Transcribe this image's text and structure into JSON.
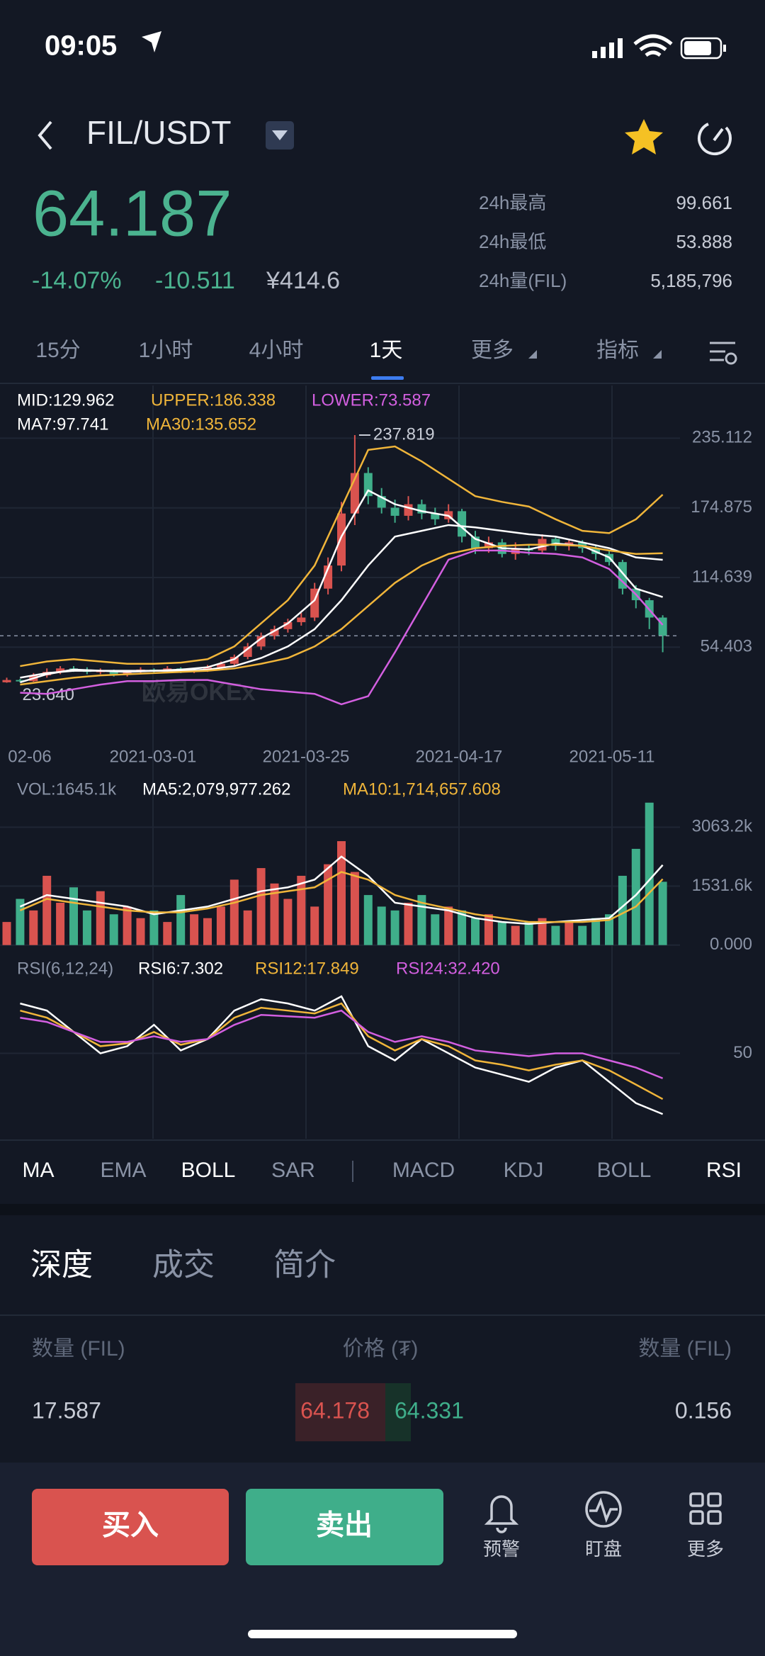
{
  "status": {
    "time": "09:05"
  },
  "header": {
    "pair": "FIL/USDT"
  },
  "ticker": {
    "price": "64.187",
    "change_pct": "-14.07%",
    "change": "-10.511",
    "cny": "¥414.6",
    "stats": [
      {
        "label": "24h最高",
        "value": "99.661"
      },
      {
        "label": "24h最低",
        "value": "53.888"
      },
      {
        "label": "24h量(FIL)",
        "value": "5,185,796"
      }
    ]
  },
  "intervals": [
    "15分",
    "1小时",
    "4小时",
    "1天",
    "更多",
    "指标"
  ],
  "chart_data": [
    {
      "type": "candlestick",
      "legend": [
        {
          "label": "MID:129.962",
          "color": "#ffffff"
        },
        {
          "label": "UPPER:186.338",
          "color": "#f0b53a"
        },
        {
          "label": "LOWER:73.587",
          "color": "#d35fe0"
        },
        {
          "label": "MA7:97.741",
          "color": "#ffffff"
        },
        {
          "label": "MA30:135.652",
          "color": "#f0b53a"
        }
      ],
      "up_color": "#d9534f",
      "down_color": "#3fae8a",
      "candles": {
        "open": [
          24,
          26,
          25,
          30,
          33,
          36,
          35,
          33,
          34,
          31,
          33,
          35,
          34,
          36,
          34,
          35,
          37,
          40,
          46,
          55,
          64,
          70,
          76,
          80,
          105,
          125,
          170,
          205,
          185,
          175,
          168,
          178,
          170,
          165,
          172,
          150,
          140,
          145,
          135,
          140,
          138,
          148,
          142,
          145,
          140,
          135,
          128,
          105,
          95,
          80
        ],
        "high": [
          28,
          27,
          32,
          36,
          38,
          38,
          37,
          36,
          35,
          34,
          37,
          36,
          38,
          37,
          36,
          39,
          42,
          48,
          58,
          67,
          73,
          79,
          84,
          110,
          132,
          180,
          237.819,
          210,
          192,
          182,
          185,
          182,
          175,
          178,
          174,
          155,
          150,
          148,
          145,
          143,
          152,
          150,
          148,
          147,
          143,
          138,
          130,
          108,
          97,
          82
        ],
        "low": [
          23.64,
          24,
          24.5,
          28,
          31,
          33,
          31,
          31,
          29,
          29,
          31,
          32,
          32,
          32,
          32,
          33,
          35,
          38,
          44,
          52,
          61,
          67,
          73,
          77,
          100,
          120,
          160,
          178,
          170,
          162,
          164,
          165,
          160,
          162,
          145,
          135,
          136,
          132,
          130,
          134,
          135,
          138,
          138,
          136,
          130,
          125,
          100,
          88,
          70,
          50
        ],
        "close": [
          26,
          25,
          30,
          33,
          36,
          35,
          33,
          34,
          31,
          33,
          35,
          34,
          36,
          34,
          35,
          37,
          40,
          46,
          55,
          64,
          70,
          76,
          80,
          105,
          125,
          170,
          205,
          185,
          175,
          168,
          178,
          170,
          165,
          172,
          150,
          140,
          145,
          135,
          140,
          138,
          148,
          142,
          145,
          140,
          135,
          128,
          105,
          95,
          80,
          64.187
        ]
      },
      "series": [
        {
          "name": "UPPER",
          "color": "#f0b53a",
          "values": [
            38,
            42,
            44,
            42,
            40,
            40,
            41,
            44,
            55,
            75,
            95,
            125,
            175,
            225,
            228,
            215,
            200,
            185,
            180,
            176,
            165,
            155,
            153,
            165,
            186.338
          ]
        },
        {
          "name": "MID",
          "color": "#ffffff",
          "values": [
            28,
            32,
            34,
            34,
            34,
            34,
            34,
            35,
            38,
            45,
            55,
            70,
            95,
            125,
            150,
            155,
            160,
            158,
            155,
            152,
            150,
            145,
            140,
            132,
            129.962
          ]
        },
        {
          "name": "LOWER",
          "color": "#d35fe0",
          "values": [
            15,
            14,
            18,
            22,
            25,
            25,
            26,
            26,
            22,
            18,
            16,
            14,
            5,
            12,
            50,
            90,
            130,
            138,
            138,
            136,
            135,
            132,
            122,
            100,
            73.587
          ]
        },
        {
          "name": "MA7",
          "color": "#ffffff",
          "values": [
            24,
            31,
            35,
            34,
            33,
            34,
            35,
            37,
            44,
            62,
            75,
            95,
            150,
            190,
            178,
            172,
            168,
            148,
            140,
            139,
            144,
            142,
            132,
            105,
            97.741
          ]
        },
        {
          "name": "MA30",
          "color": "#f0b53a",
          "values": [
            22,
            25,
            28,
            30,
            31,
            32,
            33,
            34,
            36,
            40,
            45,
            55,
            70,
            90,
            110,
            125,
            135,
            140,
            142,
            143,
            143,
            142,
            138,
            135,
            135.652
          ]
        }
      ],
      "ylim": [
        -15.9,
        280.7
      ],
      "yticks": [
        235.112,
        174.875,
        114.639,
        54.403
      ],
      "x_labels": [
        "02-06",
        "2021-03-01",
        "2021-03-25",
        "2021-04-17",
        "2021-05-11"
      ],
      "max_label": "237.819",
      "min_label": "23.640",
      "watermark": "欧易OKEx"
    },
    {
      "type": "bar",
      "legend": [
        {
          "label": "VOL:1645.1k",
          "color": "#8a93a6"
        },
        {
          "label": "MA5:2,079,977.262",
          "color": "#ffffff"
        },
        {
          "label": "MA10:1,714,657.608",
          "color": "#f0b53a"
        }
      ],
      "values": [
        600,
        1200,
        900,
        1800,
        1100,
        1500,
        900,
        1400,
        800,
        1000,
        700,
        900,
        600,
        1300,
        800,
        700,
        1000,
        1700,
        900,
        2000,
        1600,
        1200,
        1800,
        1000,
        2100,
        2700,
        1900,
        1300,
        1000,
        900,
        1100,
        1300,
        800,
        1000,
        900,
        700,
        800,
        600,
        500,
        600,
        700,
        500,
        600,
        500,
        700,
        800,
        1800,
        2500,
        3700,
        1645.1
      ],
      "series": [
        {
          "name": "MA5",
          "color": "#ffffff",
          "values": [
            1000,
            1300,
            1200,
            1100,
            1000,
            800,
            900,
            1000,
            1200,
            1400,
            1500,
            1700,
            2300,
            1800,
            1100,
            1000,
            900,
            700,
            600,
            550,
            600,
            650,
            700,
            1300,
            2080
          ]
        },
        {
          "name": "MA10",
          "color": "#f0b53a",
          "values": [
            900,
            1200,
            1100,
            1000,
            900,
            850,
            850,
            950,
            1100,
            1300,
            1400,
            1500,
            1900,
            1700,
            1300,
            1100,
            950,
            800,
            700,
            600,
            600,
            600,
            650,
            1000,
            1715
          ]
        }
      ],
      "ylim": [
        -355,
        3419
      ],
      "yticks": [
        {
          "value": 3063.2,
          "label": "3063.2k"
        },
        {
          "value": 1531.6,
          "label": "1531.6k"
        },
        {
          "value": 0,
          "label": "0.000"
        }
      ]
    },
    {
      "type": "line",
      "legend": [
        {
          "label": "RSI(6,12,24)",
          "color": "#8a93a6"
        },
        {
          "label": "RSI6:7.302",
          "color": "#ffffff"
        },
        {
          "label": "RSI12:17.849",
          "color": "#f0b53a"
        },
        {
          "label": "RSI24:32.420",
          "color": "#d35fe0"
        }
      ],
      "series": [
        {
          "name": "RSI6",
          "color": "#ffffff",
          "values": [
            85,
            80,
            65,
            50,
            55,
            70,
            52,
            60,
            80,
            88,
            85,
            80,
            90,
            55,
            45,
            60,
            50,
            40,
            35,
            30,
            40,
            45,
            30,
            15,
            7.302
          ]
        },
        {
          "name": "RSI12",
          "color": "#f0b53a",
          "values": [
            80,
            75,
            65,
            55,
            57,
            65,
            56,
            60,
            75,
            82,
            80,
            78,
            85,
            62,
            52,
            60,
            55,
            45,
            42,
            38,
            42,
            45,
            38,
            28,
            17.849
          ]
        },
        {
          "name": "RSI24",
          "color": "#d35fe0",
          "values": [
            75,
            72,
            65,
            58,
            58,
            62,
            58,
            60,
            70,
            77,
            76,
            75,
            80,
            65,
            58,
            62,
            58,
            52,
            50,
            48,
            50,
            50,
            45,
            40,
            32.42
          ]
        }
      ],
      "ylim": [
        -10,
        100
      ],
      "yticks": [
        50
      ]
    }
  ],
  "indicators": [
    "MA",
    "EMA",
    "BOLL",
    "SAR",
    "MACD",
    "KDJ",
    "BOLL",
    "RSI"
  ],
  "section_tabs": [
    "深度",
    "成交",
    "简介"
  ],
  "depth": {
    "headers": [
      "数量 (FIL)",
      "价格 (₮)",
      "数量 (FIL)"
    ],
    "rows": [
      [
        "17.587",
        "64.178",
        "64.331",
        "0.156"
      ]
    ]
  },
  "actions": {
    "buy": "买入",
    "sell": "卖出",
    "icons": [
      "预警",
      "盯盘",
      "更多"
    ]
  }
}
